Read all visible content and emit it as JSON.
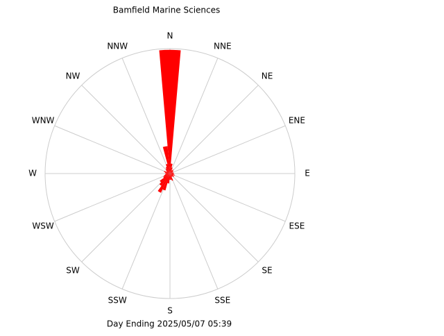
{
  "chart_data": {
    "type": "windrose",
    "title": "Bamfield Marine Sciences",
    "subtitle": "Day Ending 2025/05/07 05:39",
    "directions": [
      "N",
      "NNE",
      "NE",
      "ENE",
      "E",
      "ESE",
      "SE",
      "SSE",
      "S",
      "SSW",
      "SW",
      "WSW",
      "W",
      "WNW",
      "NW",
      "NNW"
    ],
    "x": [
      0,
      10,
      20,
      30,
      40,
      50,
      60,
      70,
      80,
      90,
      100,
      110,
      120,
      130,
      140,
      150,
      160,
      170,
      180,
      190,
      200,
      210,
      220,
      230,
      240,
      250,
      260,
      270,
      280,
      290,
      300,
      310,
      320,
      330,
      340,
      350
    ],
    "values": [
      99,
      8,
      5,
      3,
      4,
      3,
      3,
      2,
      3,
      3,
      3,
      4,
      3,
      4,
      3,
      3,
      6,
      5,
      5,
      8,
      14,
      17,
      12,
      10,
      6,
      5,
      4,
      3,
      4,
      5,
      3,
      4,
      5,
      6,
      8,
      22
    ],
    "color": "#ff0000",
    "rlim": [
      0,
      100
    ],
    "grid": true
  }
}
